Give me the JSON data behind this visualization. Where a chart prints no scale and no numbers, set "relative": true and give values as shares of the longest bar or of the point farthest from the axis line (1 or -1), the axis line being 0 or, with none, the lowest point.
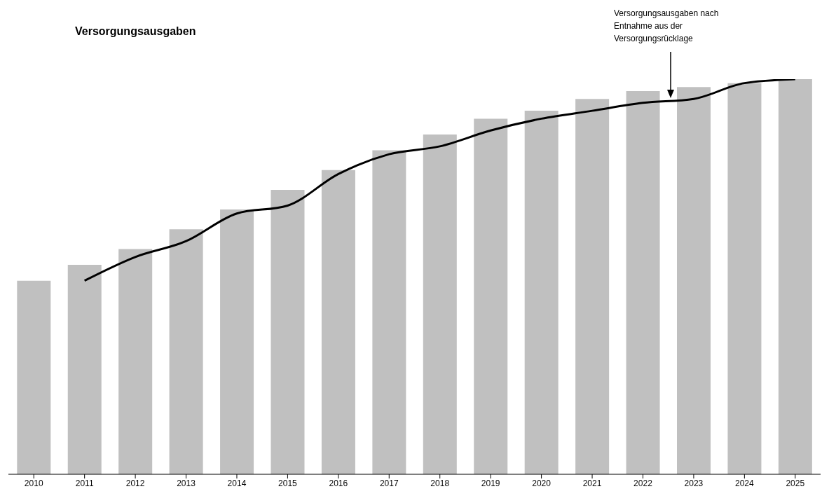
{
  "chart_data": {
    "type": "bar",
    "title": "Versorgungsausgaben",
    "annotations": [
      "Versorgungsausgaben nach Entnahme aus der Versorgungsrücklage"
    ],
    "categories": [
      "2010",
      "2011",
      "2012",
      "2013",
      "2014",
      "2015",
      "2016",
      "2017",
      "2018",
      "2019",
      "2020",
      "2021",
      "2022",
      "2023",
      "2024",
      "2025"
    ],
    "relative": true,
    "legend": false,
    "grid": false,
    "marker": "none",
    "line_style": "solid",
    "series": [
      {
        "color": "#c0c0c0",
        "values": [
          0.49,
          0.53,
          0.57,
          0.62,
          0.67,
          0.72,
          0.77,
          0.82,
          0.86,
          0.9,
          0.92,
          0.95,
          0.97,
          0.98,
          0.99,
          1.0
        ]
      },
      {
        "type": "line",
        "color": "#000000",
        "values": [
          null,
          0.49,
          0.55,
          0.59,
          0.66,
          0.68,
          0.76,
          0.81,
          0.83,
          0.87,
          0.9,
          0.92,
          0.94,
          0.95,
          0.99,
          1.0
        ]
      }
    ]
  }
}
